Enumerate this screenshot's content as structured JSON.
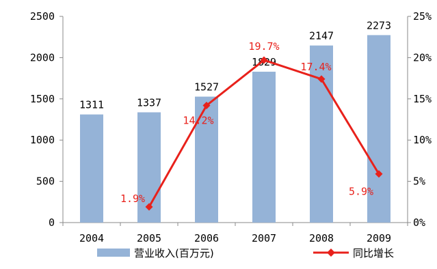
{
  "chart_data": {
    "type": "bar+line",
    "categories": [
      "2004",
      "2005",
      "2006",
      "2007",
      "2008",
      "2009"
    ],
    "series": [
      {
        "name": "营业收入(百万元)",
        "type": "bar",
        "axis": "left",
        "values": [
          1311,
          1337,
          1527,
          1829,
          2147,
          2273
        ],
        "labels": [
          "1311",
          "1337",
          "1527",
          "1829",
          "2147",
          "2273"
        ],
        "color": "#95b3d7"
      },
      {
        "name": "同比增长",
        "type": "line",
        "axis": "right",
        "values": [
          null,
          1.9,
          14.2,
          19.7,
          17.4,
          5.9
        ],
        "labels": [
          "",
          "1.9%",
          "14.2%",
          "19.7%",
          "17.4%",
          "5.9%"
        ],
        "color": "#e8211b"
      }
    ],
    "y_left": {
      "lim": [
        0,
        2500
      ],
      "ticks": [
        "0",
        "500",
        "1000",
        "1500",
        "2000",
        "2500"
      ]
    },
    "y_right": {
      "lim": [
        0,
        25
      ],
      "ticks": [
        "0%",
        "5%",
        "10%",
        "15%",
        "20%",
        "25%"
      ]
    },
    "legend_position": "bottom",
    "grid": false
  }
}
